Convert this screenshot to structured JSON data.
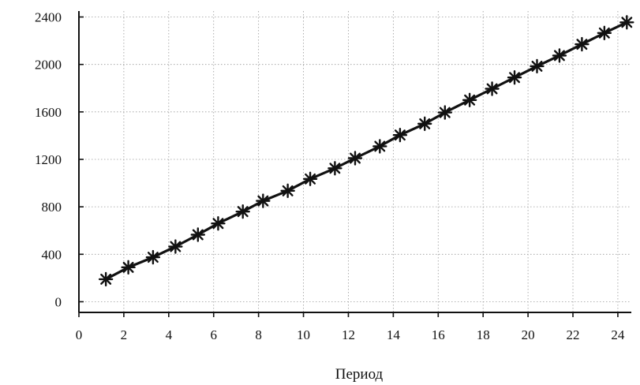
{
  "chart_data": {
    "type": "line",
    "title": "",
    "xlabel": "Период",
    "ylabel": "",
    "xlim": [
      0,
      24.6
    ],
    "ylim": [
      -90,
      2450
    ],
    "x_ticks": [
      0,
      2,
      4,
      6,
      8,
      10,
      12,
      14,
      16,
      18,
      20,
      22,
      24
    ],
    "y_ticks": [
      0,
      400,
      800,
      1200,
      1600,
      2000,
      2400
    ],
    "grid": true,
    "legend": "none",
    "marker": "asterisk",
    "line_color": "#111111",
    "x": [
      1.2,
      2.2,
      3.3,
      4.3,
      5.3,
      6.2,
      7.3,
      8.2,
      9.3,
      10.3,
      11.4,
      12.3,
      13.4,
      14.3,
      15.4,
      16.3,
      17.4,
      18.4,
      19.4,
      20.4,
      21.4,
      22.4,
      23.4,
      24.4
    ],
    "series": [
      {
        "values": [
          190,
          290,
          375,
          465,
          565,
          660,
          760,
          850,
          935,
          1035,
          1125,
          1210,
          1310,
          1405,
          1500,
          1595,
          1700,
          1795,
          1890,
          1985,
          2075,
          2170,
          2265,
          2355
        ]
      }
    ]
  }
}
